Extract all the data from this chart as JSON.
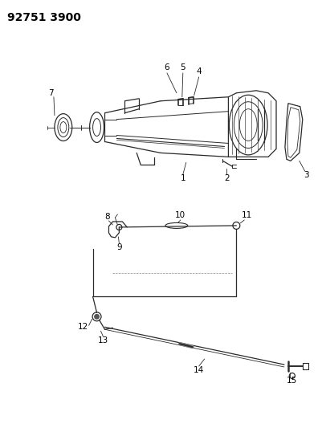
{
  "title": "92751 3900",
  "bg_color": "#ffffff",
  "line_color": "#2a2a2a",
  "label_color": "#000000",
  "title_fontsize": 10,
  "label_fontsize": 7.5,
  "fig_width": 4.02,
  "fig_height": 5.33,
  "dpi": 100
}
